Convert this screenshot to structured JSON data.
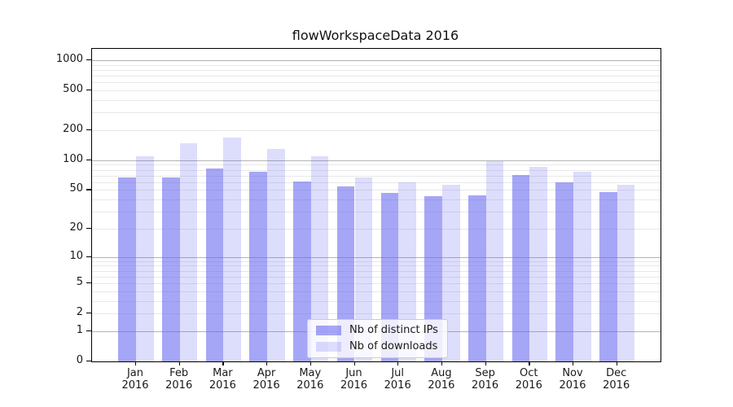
{
  "title": "flowWorkspaceData 2016",
  "chart_data": {
    "type": "bar",
    "title": "flowWorkspaceData 2016",
    "categories": [
      "Jan",
      "Feb",
      "Mar",
      "Apr",
      "May",
      "Jun",
      "Jul",
      "Aug",
      "Sep",
      "Oct",
      "Nov",
      "Dec"
    ],
    "x_tick_year": "2016",
    "series": [
      {
        "name": "Nb of distinct IPs",
        "color": "rgba(102,102,240,0.58)",
        "values": [
          67,
          67,
          83,
          77,
          61,
          54,
          47,
          43,
          44,
          71,
          60,
          48
        ]
      },
      {
        "name": "Nb of downloads",
        "color": "rgba(102,102,240,0.22)",
        "values": [
          110,
          148,
          170,
          130,
          110,
          67,
          60,
          56,
          98,
          86,
          76,
          57
        ]
      }
    ],
    "xlabel": "",
    "ylabel": "",
    "yscale": "log1p",
    "ylim": [
      0,
      1300
    ],
    "y_ticks": [
      {
        "label": "1000",
        "value": 1000
      },
      {
        "label": "500",
        "value": 500
      },
      {
        "label": "200",
        "value": 200
      },
      {
        "label": "100",
        "value": 100
      },
      {
        "label": "50",
        "value": 50
      },
      {
        "label": "20",
        "value": 20
      },
      {
        "label": "10",
        "value": 10
      },
      {
        "label": "5",
        "value": 5
      },
      {
        "label": "2",
        "value": 2
      },
      {
        "label": "1",
        "value": 1
      },
      {
        "label": "0",
        "value": 0
      }
    ],
    "y_major_gridlines": [
      1,
      10,
      100,
      1000
    ],
    "y_minor_gridlines": [
      2,
      3,
      4,
      5,
      6,
      7,
      8,
      9,
      20,
      30,
      40,
      50,
      60,
      70,
      80,
      90,
      200,
      300,
      400,
      500,
      600,
      700,
      800,
      900
    ],
    "grid": true,
    "legend": {
      "position": "lower center",
      "entries": [
        "Nb of distinct IPs",
        "Nb of downloads"
      ]
    },
    "colors": {
      "background": "#ffffff",
      "spine": "#000000",
      "grid_minor": "#e8e8e8",
      "grid_major": "#b3b3b3",
      "text": "#1a1a1a"
    }
  }
}
